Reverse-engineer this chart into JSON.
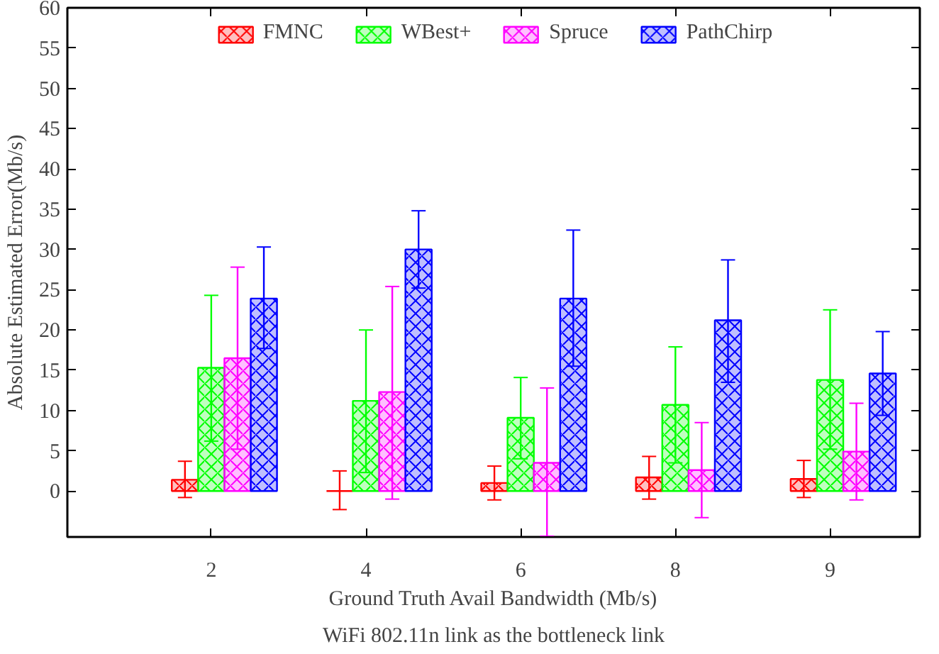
{
  "chart_data": {
    "type": "bar",
    "xlabel": "Ground Truth Avail Bandwidth (Mb/s)",
    "ylabel": "Absolute Estimated Error(Mb/s)",
    "annotations": [
      "WiFi 802.11n link as the bottleneck link"
    ],
    "categories": [
      "2",
      "4",
      "6",
      "8",
      "9"
    ],
    "series": [
      {
        "name": "FMNC",
        "color": "#ff0000",
        "values": [
          1.4,
          0,
          1.0,
          1.7,
          1.5
        ],
        "errors": [
          [
            -0.8,
            3.7
          ],
          [
            -2.3,
            2.5
          ],
          [
            -1.1,
            3.1
          ],
          [
            -1.0,
            4.3
          ],
          [
            -0.8,
            3.8
          ]
        ]
      },
      {
        "name": "WBest+",
        "color": "#00ff00",
        "values": [
          15.3,
          11.2,
          9.1,
          10.7,
          13.8
        ],
        "errors": [
          [
            6.2,
            24.3
          ],
          [
            2.3,
            20.0
          ],
          [
            4.0,
            14.1
          ],
          [
            3.5,
            17.9
          ],
          [
            5.2,
            22.5
          ]
        ]
      },
      {
        "name": "Spruce",
        "color": "#ff00ff",
        "values": [
          16.5,
          12.3,
          3.5,
          2.6,
          4.9
        ],
        "errors": [
          [
            5.2,
            27.8
          ],
          [
            -1.0,
            25.4
          ],
          [
            -5.6,
            12.8
          ],
          [
            -3.3,
            8.5
          ],
          [
            -1.1,
            10.9
          ]
        ]
      },
      {
        "name": "PathChirp",
        "color": "#0000ff",
        "values": [
          23.9,
          30.0,
          23.9,
          21.2,
          14.6
        ],
        "errors": [
          [
            17.7,
            30.3
          ],
          [
            25.2,
            34.8
          ],
          [
            15.5,
            32.4
          ],
          [
            13.5,
            28.7
          ],
          [
            9.4,
            19.8
          ]
        ]
      }
    ],
    "ylim": [
      -5.7,
      60
    ],
    "yticks": [
      0,
      5,
      10,
      15,
      20,
      25,
      30,
      35,
      40,
      45,
      50,
      55,
      60
    ],
    "grid": false,
    "legend": "top"
  }
}
